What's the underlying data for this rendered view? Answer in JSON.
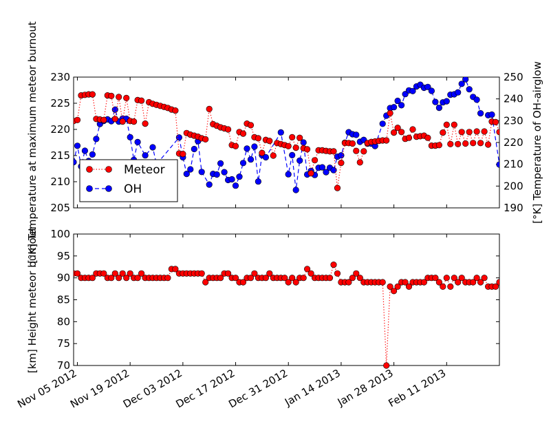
{
  "chart_data": [
    {
      "type": "line",
      "ylabel": "[°K] Temperature at maximum meteor burnout",
      "ylabel2": "[°K] Temperature of OH-airglow",
      "ylim": [
        205,
        230
      ],
      "ylim2": [
        190,
        250
      ],
      "xlim": [
        "2012-11-04",
        "2013-02-25"
      ],
      "yticks": [
        205,
        210,
        215,
        220,
        225,
        230
      ],
      "yticks2": [
        190,
        200,
        210,
        220,
        230,
        240,
        250
      ],
      "legend": "lower-left",
      "series": [
        {
          "name": "Meteor",
          "color": "#ff0000",
          "axis": "left",
          "x": [
            "2012-11-04",
            "2012-11-05",
            "2012-11-06",
            "2012-11-07",
            "2012-11-08",
            "2012-11-09",
            "2012-11-10",
            "2012-11-11",
            "2012-11-12",
            "2012-11-13",
            "2012-11-14",
            "2012-11-15",
            "2012-11-16",
            "2012-11-17",
            "2012-11-18",
            "2012-11-19",
            "2012-11-20",
            "2012-11-21",
            "2012-11-22",
            "2012-11-23",
            "2012-11-24",
            "2012-11-25",
            "2012-11-26",
            "2012-11-27",
            "2012-11-28",
            "2012-11-29",
            "2012-11-30",
            "2012-12-01",
            "2012-12-02",
            "2012-12-03",
            "2012-12-04",
            "2012-12-05",
            "2012-12-06",
            "2012-12-07",
            "2012-12-08",
            "2012-12-09",
            "2012-12-10",
            "2012-12-11",
            "2012-12-12",
            "2012-12-13",
            "2012-12-14",
            "2012-12-15",
            "2012-12-16",
            "2012-12-17",
            "2012-12-18",
            "2012-12-19",
            "2012-12-20",
            "2012-12-21",
            "2012-12-22",
            "2012-12-23",
            "2012-12-24",
            "2012-12-25",
            "2012-12-26",
            "2012-12-27",
            "2012-12-28",
            "2012-12-29",
            "2012-12-30",
            "2012-12-31",
            "2013-01-01",
            "2013-01-02",
            "2013-01-03",
            "2013-01-04",
            "2013-01-05",
            "2013-01-06",
            "2013-01-07",
            "2013-01-08",
            "2013-01-09",
            "2013-01-10",
            "2013-01-11",
            "2013-01-12",
            "2013-01-13",
            "2013-01-14",
            "2013-01-15",
            "2013-01-16",
            "2013-01-17",
            "2013-01-18",
            "2013-01-19",
            "2013-01-20",
            "2013-01-21",
            "2013-01-22",
            "2013-01-23",
            "2013-01-24",
            "2013-01-25",
            "2013-01-26",
            "2013-01-27",
            "2013-01-28",
            "2013-01-29",
            "2013-01-30",
            "2013-01-31",
            "2013-02-01",
            "2013-02-02",
            "2013-02-03",
            "2013-02-04",
            "2013-02-05",
            "2013-02-06",
            "2013-02-07",
            "2013-02-08",
            "2013-02-09",
            "2013-02-10",
            "2013-02-11",
            "2013-02-12",
            "2013-02-13",
            "2013-02-14",
            "2013-02-15",
            "2013-02-16",
            "2013-02-17",
            "2013-02-18",
            "2013-02-19",
            "2013-02-20",
            "2013-02-21",
            "2013-02-22",
            "2013-02-23",
            "2013-02-24",
            "2013-02-25"
          ],
          "values": [
            221.6,
            221.8,
            226.5,
            226.6,
            226.7,
            226.7,
            222.0,
            221.9,
            221.8,
            226.5,
            226.4,
            222.0,
            226.2,
            221.5,
            226.0,
            221.6,
            221.5,
            225.6,
            225.5,
            221.1,
            225.2,
            224.9,
            224.7,
            224.5,
            224.3,
            224.1,
            223.8,
            223.6,
            215.4,
            215.3,
            219.3,
            219.0,
            218.8,
            218.6,
            218.3,
            218.1,
            223.9,
            221.0,
            220.7,
            220.4,
            220.2,
            220.0,
            217.0,
            216.8,
            219.5,
            219.2,
            221.1,
            220.8,
            218.5,
            218.3,
            215.5,
            218.0,
            217.8,
            215.0,
            217.4,
            217.2,
            217.0,
            216.8,
            218.5,
            216.5,
            218.4,
            216.4,
            216.2,
            211.6,
            214.1,
            216.0,
            216.0,
            215.9,
            215.8,
            215.8,
            208.8,
            213.6,
            217.4,
            217.4,
            217.3,
            215.9,
            213.7,
            215.8,
            217.4,
            217.6,
            217.7,
            217.8,
            217.9,
            217.9,
            223.1,
            219.4,
            220.3,
            219.5,
            218.2,
            218.4,
            220.0,
            218.6,
            218.7,
            218.8,
            218.4,
            216.9,
            216.9,
            217.0,
            219.4,
            220.9,
            217.2,
            220.9,
            217.2,
            219.5,
            217.3,
            219.5,
            217.4,
            219.6,
            217.4,
            219.6,
            217.1,
            221.5,
            221.4,
            219.5
          ]
        },
        {
          "name": "OH",
          "color": "#0000ff",
          "axis": "right",
          "x": [
            "2012-11-04",
            "2012-11-05",
            "2012-11-06",
            "2012-11-07",
            "2012-11-08",
            "2012-11-09",
            "2012-11-10",
            "2012-11-11",
            "2012-11-12",
            "2012-11-13",
            "2012-11-14",
            "2012-11-15",
            "2012-11-16",
            "2012-11-17",
            "2012-11-18",
            "2012-11-19",
            "2012-11-20",
            "2012-11-21",
            "2012-11-23",
            "2012-11-25",
            "2012-11-26",
            "2012-12-02",
            "2012-12-03",
            "2012-12-04",
            "2012-12-05",
            "2012-12-06",
            "2012-12-07",
            "2012-12-08",
            "2012-12-10",
            "2012-12-11",
            "2012-12-12",
            "2012-12-13",
            "2012-12-14",
            "2012-12-15",
            "2012-12-16",
            "2012-12-17",
            "2012-12-18",
            "2012-12-19",
            "2012-12-20",
            "2012-12-21",
            "2012-12-22",
            "2012-12-23",
            "2012-12-24",
            "2012-12-25",
            "2012-12-29",
            "2012-12-31",
            "2013-01-01",
            "2013-01-02",
            "2013-01-03",
            "2013-01-04",
            "2013-01-05",
            "2013-01-06",
            "2013-01-07",
            "2013-01-08",
            "2013-01-09",
            "2013-01-10",
            "2013-01-11",
            "2013-01-12",
            "2013-01-13",
            "2013-01-14",
            "2013-01-15",
            "2013-01-16",
            "2013-01-17",
            "2013-01-18",
            "2013-01-19",
            "2013-01-20",
            "2013-01-21",
            "2013-01-22",
            "2013-01-23",
            "2013-01-25",
            "2013-01-26",
            "2013-01-27",
            "2013-01-28",
            "2013-01-29",
            "2013-01-30",
            "2013-01-31",
            "2013-02-01",
            "2013-02-02",
            "2013-02-03",
            "2013-02-04",
            "2013-02-05",
            "2013-02-06",
            "2013-02-07",
            "2013-02-08",
            "2013-02-09",
            "2013-02-10",
            "2013-02-11",
            "2013-02-12",
            "2013-02-13",
            "2013-02-14",
            "2013-02-15",
            "2013-02-16",
            "2013-02-17",
            "2013-02-18",
            "2013-02-19",
            "2013-02-20",
            "2013-02-22",
            "2013-02-23",
            "2013-02-25"
          ],
          "values": [
            211.0,
            218.5,
            209.0,
            216.2,
            211.5,
            214.5,
            221.6,
            228.5,
            229.9,
            230.6,
            229.8,
            235.1,
            229.6,
            231.0,
            230.9,
            222.4,
            212.0,
            220.2,
            214.1,
            217.8,
            210.0,
            222.3,
            213.2,
            205.6,
            207.7,
            217.0,
            220.6,
            206.5,
            200.7,
            205.6,
            205.3,
            210.4,
            206.4,
            202.8,
            203.1,
            200.2,
            204.3,
            210.6,
            217.2,
            212.2,
            218.1,
            202.1,
            214.2,
            213.2,
            224.6,
            205.4,
            214.2,
            198.2,
            211.7,
            220.0,
            205.3,
            207.0,
            205.1,
            208.4,
            208.6,
            206.4,
            208.4,
            207.3,
            213.5,
            214.1,
            219.9,
            224.7,
            223.8,
            223.5,
            220.3,
            221.2,
            219.5,
            219.5,
            218.4,
            228.6,
            232.3,
            235.8,
            236.2,
            239.1,
            237.1,
            242.2,
            243.9,
            243.6,
            245.7,
            246.5,
            245.1,
            245.5,
            243.7,
            238.6,
            235.9,
            238.4,
            238.9,
            241.9,
            242.1,
            243.0,
            246.9,
            249.0,
            244.4,
            240.9,
            239.6,
            233.4,
            232.5,
            232.8,
            209.9
          ]
        }
      ]
    },
    {
      "type": "line",
      "ylabel": "[km] Height meteor burnout",
      "ylim": [
        70,
        100
      ],
      "yticks": [
        70,
        75,
        80,
        85,
        90,
        95,
        100
      ],
      "xlim": [
        "2012-11-04",
        "2013-02-25"
      ],
      "xticks": [
        "Nov 05 2012",
        "Nov 19 2012",
        "Dec 03 2012",
        "Dec 17 2012",
        "Dec 31 2012",
        "Jan 14 2013",
        "Jan 28 2013",
        "Feb 11 2013"
      ],
      "series": [
        {
          "name": "Meteor",
          "color": "#ff0000",
          "x": [
            "2012-11-04",
            "2012-11-05",
            "2012-11-06",
            "2012-11-07",
            "2012-11-08",
            "2012-11-09",
            "2012-11-10",
            "2012-11-11",
            "2012-11-12",
            "2012-11-13",
            "2012-11-14",
            "2012-11-15",
            "2012-11-16",
            "2012-11-17",
            "2012-11-18",
            "2012-11-19",
            "2012-11-20",
            "2012-11-21",
            "2012-11-22",
            "2012-11-23",
            "2012-11-24",
            "2012-11-25",
            "2012-11-26",
            "2012-11-27",
            "2012-11-28",
            "2012-11-29",
            "2012-11-30",
            "2012-12-01",
            "2012-12-02",
            "2012-12-03",
            "2012-12-04",
            "2012-12-05",
            "2012-12-06",
            "2012-12-07",
            "2012-12-08",
            "2012-12-09",
            "2012-12-10",
            "2012-12-11",
            "2012-12-12",
            "2012-12-13",
            "2012-12-14",
            "2012-12-15",
            "2012-12-16",
            "2012-12-17",
            "2012-12-18",
            "2012-12-19",
            "2012-12-20",
            "2012-12-21",
            "2012-12-22",
            "2012-12-23",
            "2012-12-24",
            "2012-12-25",
            "2012-12-26",
            "2012-12-27",
            "2012-12-28",
            "2012-12-29",
            "2012-12-30",
            "2012-12-31",
            "2013-01-01",
            "2013-01-02",
            "2013-01-03",
            "2013-01-04",
            "2013-01-05",
            "2013-01-06",
            "2013-01-07",
            "2013-01-08",
            "2013-01-09",
            "2013-01-10",
            "2013-01-11",
            "2013-01-12",
            "2013-01-13",
            "2013-01-14",
            "2013-01-15",
            "2013-01-16",
            "2013-01-17",
            "2013-01-18",
            "2013-01-19",
            "2013-01-20",
            "2013-01-21",
            "2013-01-22",
            "2013-01-23",
            "2013-01-24",
            "2013-01-25",
            "2013-01-26",
            "2013-01-27",
            "2013-01-28",
            "2013-01-29",
            "2013-01-30",
            "2013-01-31",
            "2013-02-01",
            "2013-02-02",
            "2013-02-03",
            "2013-02-04",
            "2013-02-05",
            "2013-02-06",
            "2013-02-07",
            "2013-02-08",
            "2013-02-09",
            "2013-02-10",
            "2013-02-11",
            "2013-02-12",
            "2013-02-13",
            "2013-02-14",
            "2013-02-15",
            "2013-02-16",
            "2013-02-17",
            "2013-02-18",
            "2013-02-19",
            "2013-02-20",
            "2013-02-21",
            "2013-02-22",
            "2013-02-23",
            "2013-02-24",
            "2013-02-25"
          ],
          "values": [
            91,
            91,
            90,
            90,
            90,
            90,
            91,
            91,
            91,
            90,
            90,
            91,
            90,
            91,
            90,
            91,
            90,
            90,
            91,
            90,
            90,
            90,
            90,
            90,
            90,
            90,
            92,
            92,
            91,
            91,
            91,
            91,
            91,
            91,
            91,
            89,
            90,
            90,
            90,
            90,
            91,
            91,
            90,
            90,
            89,
            89,
            90,
            90,
            91,
            90,
            90,
            90,
            91,
            90,
            90,
            90,
            90,
            89,
            90,
            89,
            90,
            90,
            92,
            91,
            90,
            90,
            90,
            90,
            90,
            93,
            91,
            89,
            89,
            89,
            90,
            91,
            90,
            89,
            89,
            89,
            89,
            89,
            89,
            70,
            88,
            87,
            88,
            89,
            89,
            88,
            89,
            89,
            89,
            89,
            90,
            90,
            90,
            89,
            88,
            90,
            88,
            90,
            89,
            90,
            89,
            89,
            89,
            90,
            89,
            90,
            88,
            88,
            88,
            89
          ]
        }
      ]
    }
  ]
}
